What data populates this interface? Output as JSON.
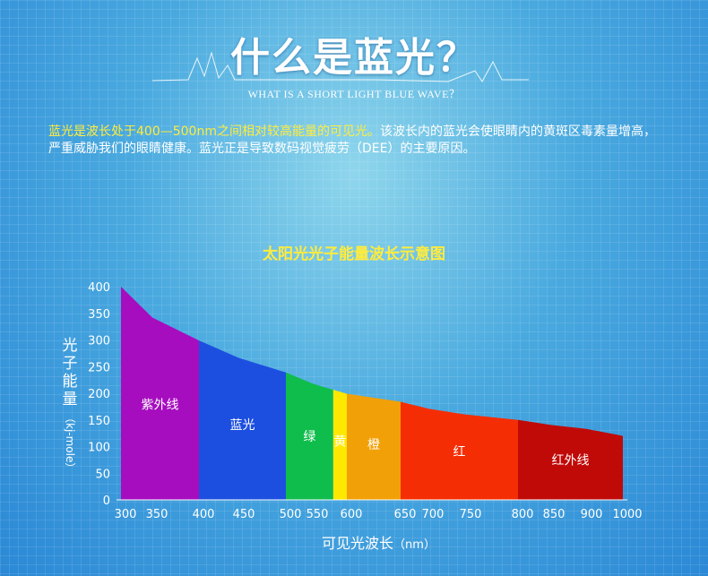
{
  "header": {
    "title": "什么是蓝光？",
    "subtitle": "WHAT IS A SHORT LIGHT BLUE WAVE？"
  },
  "intro": {
    "highlight": "蓝光是波长处于400—500nm之间相对较高能量的可见光。",
    "rest": "该波长内的蓝光会使眼睛内的黄斑区毒素量增高，严重威胁我们的眼睛健康。蓝光正是导致数码视觉疲劳（DEE）的主要原因。"
  },
  "colors": {
    "title_yellow": "#ffec3d",
    "ultraviolet": "#a60dbf",
    "blue": "#1c4fe0",
    "green": "#0fbd4c",
    "yellow": "#ffe800",
    "orange": "#f2a007",
    "red": "#f52d05",
    "infrared": "#c00a08"
  },
  "chart_data": {
    "type": "area",
    "title": "太阳光光子能量波长示意图",
    "ylabel": "光子能量",
    "ylabel_unit": "（kj-mole）",
    "xlabel": "可见光波长",
    "xlabel_unit": "（nm）",
    "x_ticks": [
      300,
      350,
      400,
      450,
      500,
      550,
      600,
      650,
      700,
      750,
      800,
      850,
      900,
      1000
    ],
    "y_ticks": [
      0,
      50,
      100,
      150,
      200,
      250,
      300,
      350,
      400
    ],
    "ylim": [
      0,
      400
    ],
    "curve": [
      {
        "x": 300,
        "y": 400
      },
      {
        "x": 350,
        "y": 342
      },
      {
        "x": 400,
        "y": 299
      },
      {
        "x": 450,
        "y": 266
      },
      {
        "x": 500,
        "y": 239
      },
      {
        "x": 550,
        "y": 218
      },
      {
        "x": 600,
        "y": 199
      },
      {
        "x": 650,
        "y": 184
      },
      {
        "x": 700,
        "y": 171
      },
      {
        "x": 750,
        "y": 160
      },
      {
        "x": 800,
        "y": 150
      },
      {
        "x": 850,
        "y": 141
      },
      {
        "x": 900,
        "y": 133
      },
      {
        "x": 1000,
        "y": 120
      }
    ],
    "bands": [
      {
        "label": "紫外线",
        "from": 300,
        "to": 400,
        "color": "#a60dbf"
      },
      {
        "label": "蓝光",
        "from": 400,
        "to": 500,
        "color": "#1c4fe0"
      },
      {
        "label": "绿",
        "from": 500,
        "to": 580,
        "color": "#0fbd4c"
      },
      {
        "label": "黄",
        "from": 580,
        "to": 600,
        "color": "#ffe800"
      },
      {
        "label": "橙",
        "from": 600,
        "to": 650,
        "color": "#f2a007"
      },
      {
        "label": "红",
        "from": 650,
        "to": 800,
        "color": "#f52d05"
      },
      {
        "label": "红外线",
        "from": 800,
        "to": 1000,
        "color": "#c00a08"
      }
    ]
  }
}
